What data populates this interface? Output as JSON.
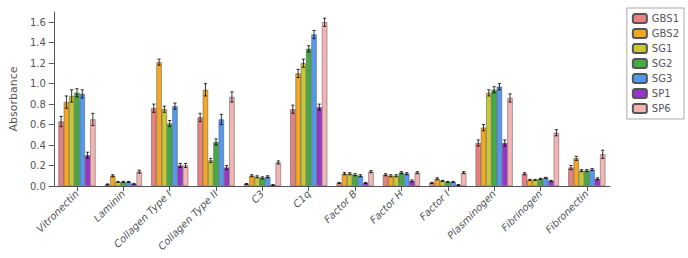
{
  "chart_data": {
    "type": "bar",
    "categories": [
      "Vitronectin",
      "Laminin",
      "Collagen Type I",
      "Collagen Type II",
      "C3",
      "C1q",
      "Factor B",
      "Factor H",
      "Factor I",
      "Plasminogen",
      "Fibrinogen",
      "Fibronectin"
    ],
    "series": [
      {
        "name": "GBS1",
        "color": "#E88080",
        "values": [
          0.63,
          0.015,
          0.76,
          0.67,
          0.02,
          0.75,
          0.03,
          0.11,
          0.03,
          0.42,
          0.12,
          0.18
        ],
        "errors": [
          0.05,
          0.005,
          0.04,
          0.04,
          0.005,
          0.04,
          0.005,
          0.01,
          0.005,
          0.03,
          0.01,
          0.02
        ]
      },
      {
        "name": "GBS2",
        "color": "#F5A623",
        "values": [
          0.82,
          0.1,
          1.21,
          0.94,
          0.1,
          1.1,
          0.12,
          0.1,
          0.07,
          0.57,
          0.06,
          0.27
        ],
        "errors": [
          0.06,
          0.01,
          0.03,
          0.06,
          0.01,
          0.04,
          0.01,
          0.01,
          0.01,
          0.03,
          0.005,
          0.02
        ]
      },
      {
        "name": "SG1",
        "color": "#C8C832",
        "values": [
          0.88,
          0.04,
          0.75,
          0.25,
          0.09,
          1.2,
          0.12,
          0.1,
          0.05,
          0.91,
          0.06,
          0.15
        ],
        "errors": [
          0.06,
          0.005,
          0.03,
          0.02,
          0.01,
          0.04,
          0.01,
          0.01,
          0.005,
          0.03,
          0.005,
          0.01
        ]
      },
      {
        "name": "SG2",
        "color": "#44AA44",
        "values": [
          0.91,
          0.04,
          0.61,
          0.43,
          0.08,
          1.34,
          0.11,
          0.13,
          0.04,
          0.94,
          0.07,
          0.15
        ],
        "errors": [
          0.04,
          0.005,
          0.03,
          0.03,
          0.01,
          0.03,
          0.01,
          0.01,
          0.005,
          0.03,
          0.005,
          0.01
        ]
      },
      {
        "name": "SG3",
        "color": "#5599EE",
        "values": [
          0.9,
          0.04,
          0.78,
          0.65,
          0.09,
          1.48,
          0.1,
          0.12,
          0.04,
          0.97,
          0.08,
          0.16
        ],
        "errors": [
          0.04,
          0.005,
          0.03,
          0.05,
          0.01,
          0.04,
          0.01,
          0.01,
          0.005,
          0.03,
          0.005,
          0.01
        ]
      },
      {
        "name": "SP1",
        "color": "#9933CC",
        "values": [
          0.3,
          0.02,
          0.2,
          0.18,
          0.01,
          0.77,
          0.03,
          0.05,
          0.01,
          0.42,
          0.05,
          0.07
        ],
        "errors": [
          0.03,
          0.005,
          0.02,
          0.02,
          0.005,
          0.03,
          0.005,
          0.01,
          0.005,
          0.03,
          0.005,
          0.01
        ]
      },
      {
        "name": "SP6",
        "color": "#F4B4B4",
        "values": [
          0.65,
          0.14,
          0.2,
          0.87,
          0.23,
          1.6,
          0.14,
          0.13,
          0.13,
          0.86,
          0.52,
          0.31
        ],
        "errors": [
          0.06,
          0.015,
          0.02,
          0.05,
          0.015,
          0.04,
          0.01,
          0.01,
          0.01,
          0.04,
          0.03,
          0.04
        ]
      }
    ],
    "ylabel": "Absorbance",
    "ylim": [
      0,
      1.7
    ],
    "yticks": [
      {
        "value": 0,
        "label": "0.0"
      },
      0.2,
      0.4,
      0.6,
      0.8,
      {
        "value": 1,
        "label": "1.0"
      },
      1.2,
      1.4,
      1.6
    ],
    "grid": false,
    "legend": "upper right"
  }
}
